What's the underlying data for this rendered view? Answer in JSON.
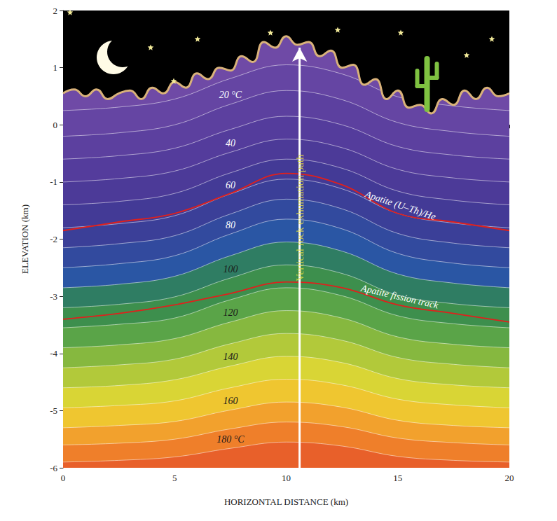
{
  "chart_data": {
    "type": "line",
    "xlabel": "HORIZONTAL DISTANCE (km)",
    "ylabel": "ELEVATION (km)",
    "xlim": [
      0,
      20
    ],
    "ylim": [
      -6,
      2
    ],
    "xticks": [
      0,
      5,
      10,
      15,
      20
    ],
    "yticks": [
      -6,
      -5,
      -4,
      -3,
      -2,
      -1,
      0,
      1,
      2
    ],
    "grid": false,
    "topography": {
      "color": "#d9b27a",
      "x": [
        0,
        0.5,
        1,
        1.5,
        2,
        2.5,
        3,
        3.5,
        4,
        4.5,
        5,
        5.5,
        6,
        6.5,
        7,
        7.5,
        8,
        8.5,
        9,
        9.5,
        10,
        10.5,
        11,
        11.5,
        12,
        12.5,
        13,
        13.5,
        14,
        14.5,
        15,
        15.5,
        16,
        16.5,
        17,
        17.5,
        18,
        18.5,
        19,
        19.5,
        20
      ],
      "values": [
        0.55,
        0.62,
        0.5,
        0.62,
        0.45,
        0.55,
        0.6,
        0.45,
        0.65,
        0.55,
        0.75,
        0.65,
        0.9,
        0.8,
        1.0,
        0.95,
        1.2,
        1.1,
        1.45,
        1.35,
        1.55,
        1.4,
        1.45,
        1.2,
        1.3,
        1.0,
        1.05,
        0.7,
        0.8,
        0.45,
        0.6,
        0.3,
        0.35,
        0.2,
        0.45,
        0.35,
        0.6,
        0.45,
        0.65,
        0.5,
        0.55
      ]
    },
    "isotherms": {
      "line_color": "#ffffff",
      "x": [
        0,
        2.5,
        5,
        7.5,
        10,
        12.5,
        15,
        17.5,
        20
      ],
      "series": [
        {
          "color": "#6545a3",
          "values": [
            0.25,
            0.31,
            0.45,
            0.81,
            1.05,
            0.89,
            0.49,
            0.33,
            0.25
          ]
        },
        {
          "label": "20 °C",
          "color": "#5c409f",
          "values": [
            -0.2,
            -0.14,
            0,
            0.36,
            0.6,
            0.44,
            0.04,
            -0.12,
            -0.2
          ]
        },
        {
          "color": "#543c9c",
          "values": [
            -0.6,
            -0.54,
            -0.41,
            -0.08,
            0.15,
            0,
            -0.38,
            -0.53,
            -0.6
          ]
        },
        {
          "label": "40",
          "color": "#4c3a98",
          "values": [
            -1.0,
            -0.94,
            -0.81,
            -0.48,
            -0.25,
            -0.4,
            -0.78,
            -0.93,
            -1.0
          ]
        },
        {
          "color": "#433a96",
          "values": [
            -1.4,
            -1.34,
            -1.2,
            -0.84,
            -0.6,
            -0.76,
            -1.16,
            -1.32,
            -1.4
          ]
        },
        {
          "label": "60",
          "color": "#3b3f98",
          "values": [
            -1.8,
            -1.73,
            -1.59,
            -1.21,
            -0.95,
            -1.12,
            -1.55,
            -1.72,
            -1.8
          ]
        },
        {
          "color": "#324a9e",
          "values": [
            -2.15,
            -2.08,
            -1.94,
            -1.56,
            -1.3,
            -1.47,
            -1.9,
            -2.07,
            -2.15
          ]
        },
        {
          "label": "80",
          "color": "#2a56a4",
          "values": [
            -2.5,
            -2.43,
            -2.29,
            -1.91,
            -1.65,
            -1.82,
            -2.25,
            -2.42,
            -2.5
          ]
        },
        {
          "color": "#2f7d63",
          "values": [
            -2.85,
            -2.79,
            -2.65,
            -2.29,
            -2.05,
            -2.21,
            -2.61,
            -2.77,
            -2.85
          ]
        },
        {
          "label": "100",
          "color": "#3d8f4d",
          "values": [
            -3.2,
            -3.14,
            -3.01,
            -2.68,
            -2.45,
            -2.6,
            -2.98,
            -3.13,
            -3.2
          ]
        },
        {
          "color": "#5aa448",
          "values": [
            -3.55,
            -3.49,
            -3.38,
            -3.06,
            -2.85,
            -2.99,
            -3.34,
            -3.48,
            -3.55
          ]
        },
        {
          "label": "120",
          "color": "#86b83f",
          "values": [
            -3.9,
            -3.85,
            -3.74,
            -3.45,
            -3.25,
            -3.38,
            -3.71,
            -3.84,
            -3.9
          ]
        },
        {
          "color": "#b2c93a",
          "values": [
            -4.25,
            -4.2,
            -4.1,
            -3.83,
            -3.65,
            -3.77,
            -4.07,
            -4.19,
            -4.25
          ]
        },
        {
          "label": "140",
          "color": "#d9d535",
          "values": [
            -4.6,
            -4.56,
            -4.46,
            -4.22,
            -4.05,
            -4.16,
            -4.44,
            -4.55,
            -4.6
          ]
        },
        {
          "color": "#efc630",
          "values": [
            -4.95,
            -4.91,
            -4.83,
            -4.6,
            -4.45,
            -4.55,
            -4.8,
            -4.9,
            -4.95
          ]
        },
        {
          "label": "160",
          "color": "#f2a12d",
          "values": [
            -5.3,
            -5.26,
            -5.19,
            -4.99,
            -4.85,
            -4.94,
            -5.17,
            -5.26,
            -5.3
          ]
        },
        {
          "color": "#ef7f2a",
          "values": [
            -5.6,
            -5.57,
            -5.5,
            -5.32,
            -5.2,
            -5.28,
            -5.48,
            -5.56,
            -5.6
          ]
        },
        {
          "label": "180 °C",
          "color": "#e8602a",
          "values": [
            -5.9,
            -5.87,
            -5.81,
            -5.66,
            -5.55,
            -5.62,
            -5.8,
            -5.87,
            -5.9
          ]
        }
      ]
    },
    "closure_isotherms": {
      "x": [
        0,
        2.5,
        5,
        7.5,
        10,
        12.5,
        15,
        17.5,
        20
      ],
      "series": [
        {
          "name": "Apatite (U–Th)/He",
          "color": "#e0201c",
          "values": [
            -1.85,
            -1.7,
            -1.55,
            -1.2,
            -0.85,
            -1.05,
            -1.55,
            -1.7,
            -1.85
          ]
        },
        {
          "name": "Apatite fission track",
          "color": "#e0201c",
          "values": [
            -3.4,
            -3.3,
            -3.15,
            -2.95,
            -2.75,
            -2.85,
            -3.15,
            -3.3,
            -3.45
          ]
        }
      ]
    },
    "exhumation_path": {
      "label": "Vertical rock exhumation path",
      "color": "#ffffff",
      "label_color": "#e8e03a",
      "x": 10.6,
      "y": [
        -6,
        1.35
      ]
    }
  }
}
